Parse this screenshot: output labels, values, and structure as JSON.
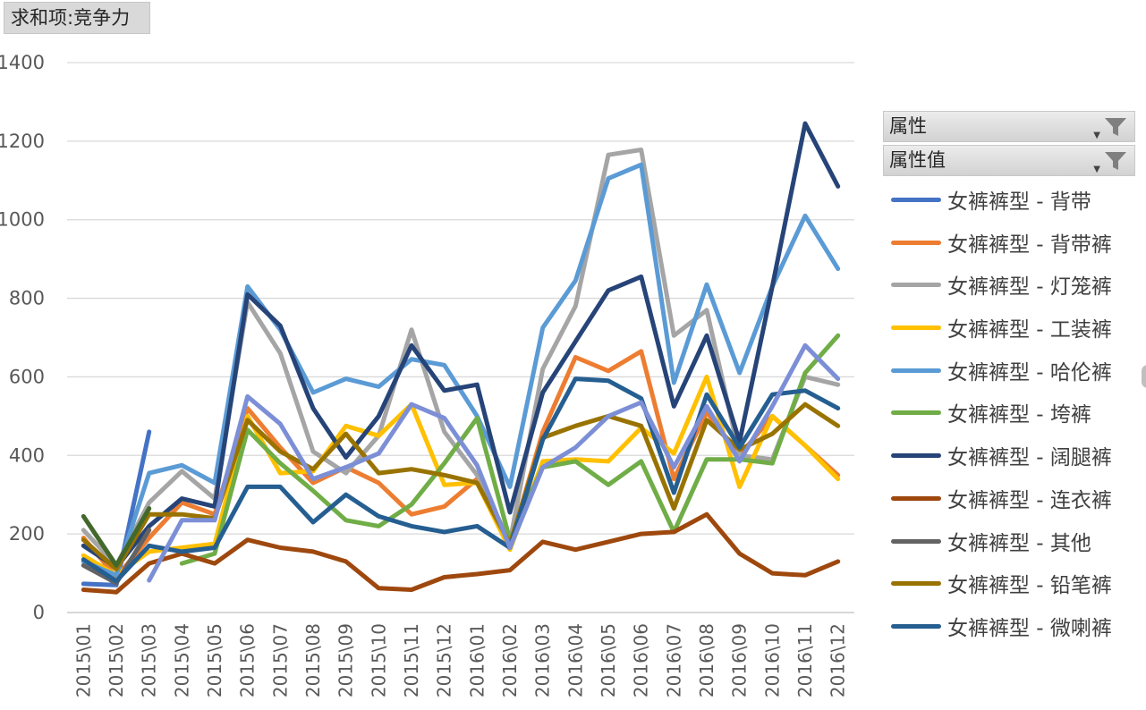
{
  "field_button": "求和项:竞争力",
  "filters": [
    {
      "label": "属性",
      "icon": "filter-icon"
    },
    {
      "label": "属性值",
      "icon": "filter-icon"
    }
  ],
  "chart_data": {
    "type": "line",
    "title": "",
    "xlabel": "",
    "ylabel": "",
    "ylim": [
      0,
      1400
    ],
    "yticks": [
      0,
      200,
      400,
      600,
      800,
      1000,
      1200,
      1400
    ],
    "grid": true,
    "legend_position": "right",
    "categories": [
      "2015\\01",
      "2015\\02",
      "2015\\03",
      "2015\\04",
      "2015\\05",
      "2015\\06",
      "2015\\07",
      "2015\\08",
      "2015\\09",
      "2015\\10",
      "2015\\11",
      "2015\\12",
      "2016\\01",
      "2016\\02",
      "2016\\03",
      "2016\\04",
      "2016\\05",
      "2016\\06",
      "2016\\07",
      "2016\\08",
      "2016\\09",
      "2016\\10",
      "2016\\11",
      "2016\\12"
    ],
    "series": [
      {
        "name": "女裤裤型 - 背带",
        "color": "#4472c4",
        "values": [
          73,
          70,
          460,
          null,
          null,
          null,
          null,
          null,
          null,
          null,
          null,
          null,
          null,
          null,
          null,
          null,
          null,
          null,
          null,
          null,
          null,
          null,
          null,
          null
        ]
      },
      {
        "name": "女裤裤型 - 背带裤",
        "color": "#ed7d31",
        "values": [
          190,
          90,
          190,
          280,
          250,
          520,
          420,
          330,
          370,
          330,
          250,
          270,
          340,
          170,
          460,
          650,
          615,
          665,
          340,
          510,
          400,
          500,
          425,
          350
        ]
      },
      {
        "name": "女裤裤型 - 灯笼裤",
        "color": "#a5a5a5",
        "values": [
          210,
          120,
          280,
          360,
          290,
          790,
          660,
          410,
          355,
          450,
          720,
          460,
          350,
          180,
          620,
          780,
          1165,
          1178,
          705,
          770,
          400,
          390,
          600,
          580
        ]
      },
      {
        "name": "女裤裤型 - 工装裤",
        "color": "#ffc000",
        "values": [
          145,
          95,
          155,
          165,
          175,
          500,
          355,
          360,
          475,
          450,
          530,
          325,
          330,
          160,
          385,
          390,
          385,
          470,
          405,
          600,
          320,
          500,
          425,
          340
        ]
      },
      {
        "name": "女裤裤型 - 哈伦裤",
        "color": "#5b9bd5",
        "values": [
          130,
          95,
          355,
          375,
          330,
          830,
          720,
          560,
          595,
          575,
          645,
          630,
          500,
          320,
          725,
          845,
          1105,
          1140,
          585,
          835,
          610,
          830,
          1010,
          875
        ]
      },
      {
        "name": "女裤裤型 - 垮裤",
        "color": "#70ad47",
        "values": [
          null,
          null,
          null,
          125,
          150,
          465,
          380,
          310,
          235,
          220,
          275,
          380,
          495,
          185,
          370,
          385,
          325,
          385,
          205,
          390,
          390,
          380,
          610,
          705
        ]
      },
      {
        "name": "女裤裤型 - 阔腿裤",
        "color": "#264478",
        "values": [
          170,
          115,
          220,
          290,
          270,
          810,
          730,
          520,
          395,
          500,
          680,
          565,
          580,
          255,
          560,
          690,
          820,
          855,
          525,
          705,
          435,
          830,
          1245,
          1085
        ]
      },
      {
        "name": "女裤裤型 - 连衣裤",
        "color": "#9e480e",
        "values": [
          58,
          52,
          125,
          150,
          125,
          185,
          165,
          155,
          130,
          62,
          58,
          90,
          98,
          108,
          180,
          160,
          180,
          200,
          205,
          250,
          150,
          100,
          95,
          130
        ]
      },
      {
        "name": "女裤裤型 - 其他",
        "color": "#636363",
        "values": [
          120,
          75,
          210,
          null,
          null,
          null,
          null,
          null,
          null,
          null,
          null,
          null,
          null,
          null,
          null,
          null,
          null,
          null,
          null,
          null,
          null,
          null,
          null,
          null
        ]
      },
      {
        "name": "女裤裤型 - 铅笔裤",
        "color": "#997300",
        "values": [
          185,
          110,
          250,
          250,
          240,
          490,
          410,
          365,
          455,
          355,
          365,
          350,
          330,
          175,
          445,
          475,
          500,
          475,
          265,
          490,
          415,
          455,
          530,
          475
        ]
      },
      {
        "name": "女裤裤型 - 微喇裤",
        "color": "#255e91",
        "values": [
          135,
          80,
          170,
          155,
          165,
          320,
          320,
          230,
          300,
          245,
          220,
          205,
          220,
          165,
          440,
          595,
          590,
          545,
          305,
          555,
          420,
          555,
          565,
          520
        ]
      },
      {
        "name": "",
        "color": "#7c8fd6",
        "values": [
          null,
          null,
          82,
          235,
          235,
          550,
          480,
          340,
          370,
          405,
          530,
          495,
          375,
          165,
          370,
          420,
          500,
          535,
          370,
          525,
          385,
          525,
          680,
          595
        ]
      },
      {
        "name": "",
        "color": "#43682b",
        "values": [
          245,
          120,
          265,
          null,
          null,
          null,
          null,
          null,
          null,
          null,
          null,
          null,
          null,
          null,
          null,
          null,
          null,
          null,
          null,
          null,
          null,
          null,
          null,
          null
        ]
      }
    ]
  }
}
